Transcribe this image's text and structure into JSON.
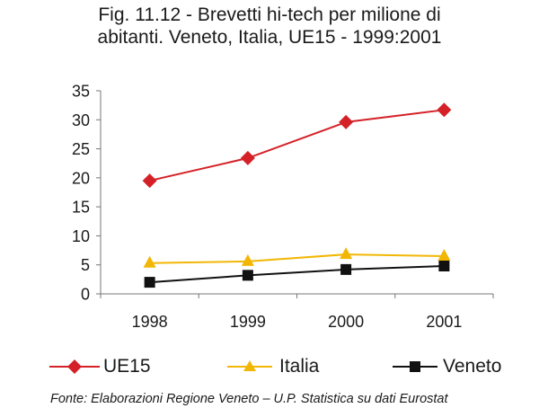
{
  "chart_data": {
    "type": "line",
    "title": "Fig. 11.12 - Brevetti hi-tech per milione di abitanti. Veneto, Italia, UE15 - 1999:2001",
    "title_lines": [
      "Fig. 11.12 - Brevetti hi-tech per milione di",
      "abitanti. Veneto, Italia, UE15 - 1999:2001"
    ],
    "xlabel": "",
    "ylabel": "",
    "categories": [
      "1998",
      "1999",
      "2000",
      "2001"
    ],
    "ylim": [
      0,
      35
    ],
    "yticks": [
      0,
      5,
      10,
      15,
      20,
      25,
      30,
      35
    ],
    "grid": false,
    "legend_position": "bottom",
    "series": [
      {
        "name": "UE15",
        "color": "#d42127",
        "marker": "diamond",
        "values": [
          19.5,
          23.4,
          29.6,
          31.7
        ]
      },
      {
        "name": "Italia",
        "color": "#f2b705",
        "marker": "triangle",
        "values": [
          5.3,
          5.6,
          6.8,
          6.5
        ]
      },
      {
        "name": "Veneto",
        "color": "#111111",
        "marker": "square",
        "values": [
          2.0,
          3.2,
          4.2,
          4.8
        ]
      }
    ],
    "source": "Fonte: Elaborazioni Regione Veneto – U.P. Statistica su dati Eurostat"
  }
}
